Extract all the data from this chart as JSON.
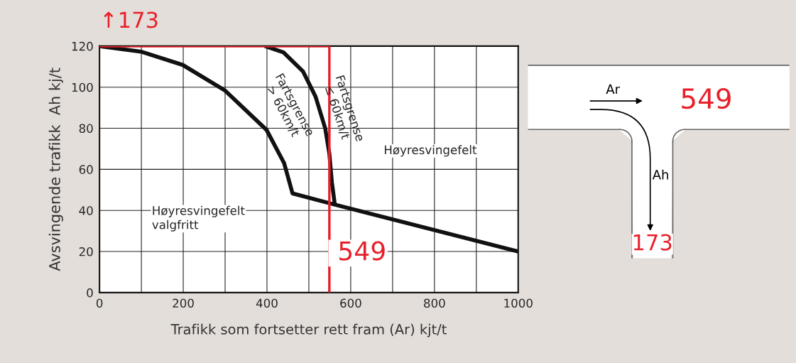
{
  "chart_data": {
    "type": "line",
    "xlabel": "Trafikk som fortsetter rett fram (Ar) kjt/t",
    "ylabel": "Avsvingende trafikk  Ah kj/t",
    "xlim": [
      0,
      1000
    ],
    "ylim": [
      0,
      120
    ],
    "xticks": [
      0,
      {
        "value": 100,
        "label": null
      },
      200,
      {
        "value": 300,
        "label": null
      },
      400,
      {
        "value": 500,
        "label": null
      },
      600,
      {
        "value": 700,
        "label": null
      },
      800,
      {
        "value": 900,
        "label": null
      },
      1000
    ],
    "yticks": [
      0,
      20,
      40,
      60,
      80,
      100,
      120
    ],
    "grid": true,
    "legend": false,
    "marker": "none",
    "line_style": "solid",
    "series": [
      {
        "name": "Fartsgrense\n> 60km/t",
        "color": "#111111",
        "x": [
          0,
          99,
          199,
          299,
          399,
          441,
          461,
          561,
          1000
        ],
        "values": [
          120,
          117.3,
          110.8,
          98.5,
          79.2,
          63,
          48.3,
          42.9,
          20
        ]
      },
      {
        "name": "Fartsgrense\n≤ 60km/t",
        "color": "#111111",
        "x": [
          395,
          439,
          486,
          516,
          539,
          549,
          555,
          562
        ],
        "values": [
          120,
          117,
          107.7,
          95.4,
          80,
          67.6,
          53.7,
          42.9
        ]
      },
      {
        "color": "#e8202a",
        "x": [
          0,
          549
        ],
        "values": [
          120,
          120
        ]
      }
    ],
    "ref_lines": [
      {
        "axis": "x",
        "value": 549,
        "label": "549",
        "color": "#e8202a",
        "line_style": "solid"
      }
    ],
    "annotations": [
      {
        "text": "↑173",
        "x": 0,
        "y": 120
      },
      "Høyresvingefelt",
      "Høyresvingefelt\nvalgfritt",
      "Ar",
      "Ah",
      "549",
      "173"
    ]
  }
}
